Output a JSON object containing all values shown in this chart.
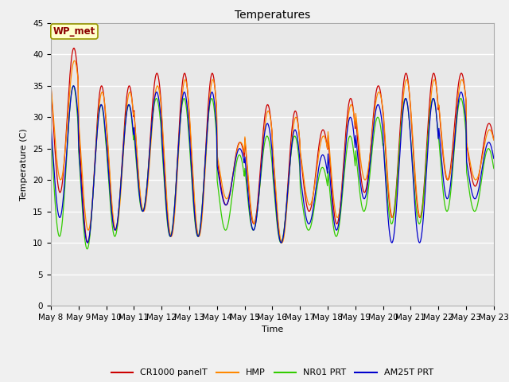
{
  "title": "Temperatures",
  "xlabel": "Time",
  "ylabel": "Temperature (C)",
  "ylim": [
    0,
    45
  ],
  "yticks": [
    0,
    5,
    10,
    15,
    20,
    25,
    30,
    35,
    40,
    45
  ],
  "date_labels": [
    "May 8",
    "May 9",
    "May 10",
    "May 11",
    "May 12",
    "May 13",
    "May 14",
    "May 15",
    "May 16",
    "May 17",
    "May 18",
    "May 19",
    "May 20",
    "May 21",
    "May 22",
    "May 23"
  ],
  "series": {
    "CR1000 panelT": {
      "color": "#cc0000"
    },
    "HMP": {
      "color": "#ff8800"
    },
    "NR01 PRT": {
      "color": "#33cc00"
    },
    "AM25T PRT": {
      "color": "#0000cc"
    }
  },
  "cr_peaks": [
    41,
    35,
    35,
    37,
    37,
    37,
    26,
    32,
    31,
    28,
    33,
    35,
    37,
    37,
    37,
    29
  ],
  "cr_mins": [
    18,
    10,
    12,
    15,
    11,
    11,
    16,
    13,
    10,
    15,
    13,
    18,
    14,
    14,
    20,
    19
  ],
  "hmp_peaks": [
    39,
    34,
    34,
    35,
    36,
    36,
    26,
    31,
    30,
    27,
    32,
    34,
    36,
    36,
    36,
    28
  ],
  "hmp_mins": [
    20,
    12,
    12,
    15,
    11,
    11,
    17,
    13,
    10,
    16,
    14,
    20,
    14,
    14,
    20,
    20
  ],
  "nr_peaks": [
    35,
    32,
    32,
    33,
    33,
    33,
    24,
    27,
    27,
    22,
    27,
    30,
    33,
    33,
    33,
    25
  ],
  "nr_mins": [
    11,
    9,
    11,
    15,
    11,
    11,
    12,
    12,
    10,
    12,
    11,
    15,
    13,
    13,
    15,
    15
  ],
  "am_peaks": [
    35,
    32,
    32,
    34,
    34,
    34,
    25,
    29,
    28,
    24,
    30,
    32,
    33,
    33,
    34,
    26
  ],
  "am_mins": [
    14,
    10,
    12,
    15,
    11,
    11,
    16,
    12,
    10,
    13,
    12,
    17,
    10,
    10,
    17,
    17
  ],
  "fig_bg": "#f0f0f0",
  "plot_bg": "#e8e8e8",
  "grid_color": "#ffffff",
  "title_fontsize": 10,
  "label_fontsize": 8,
  "tick_fontsize": 7.5,
  "legend_fontsize": 8,
  "lw": 0.9
}
